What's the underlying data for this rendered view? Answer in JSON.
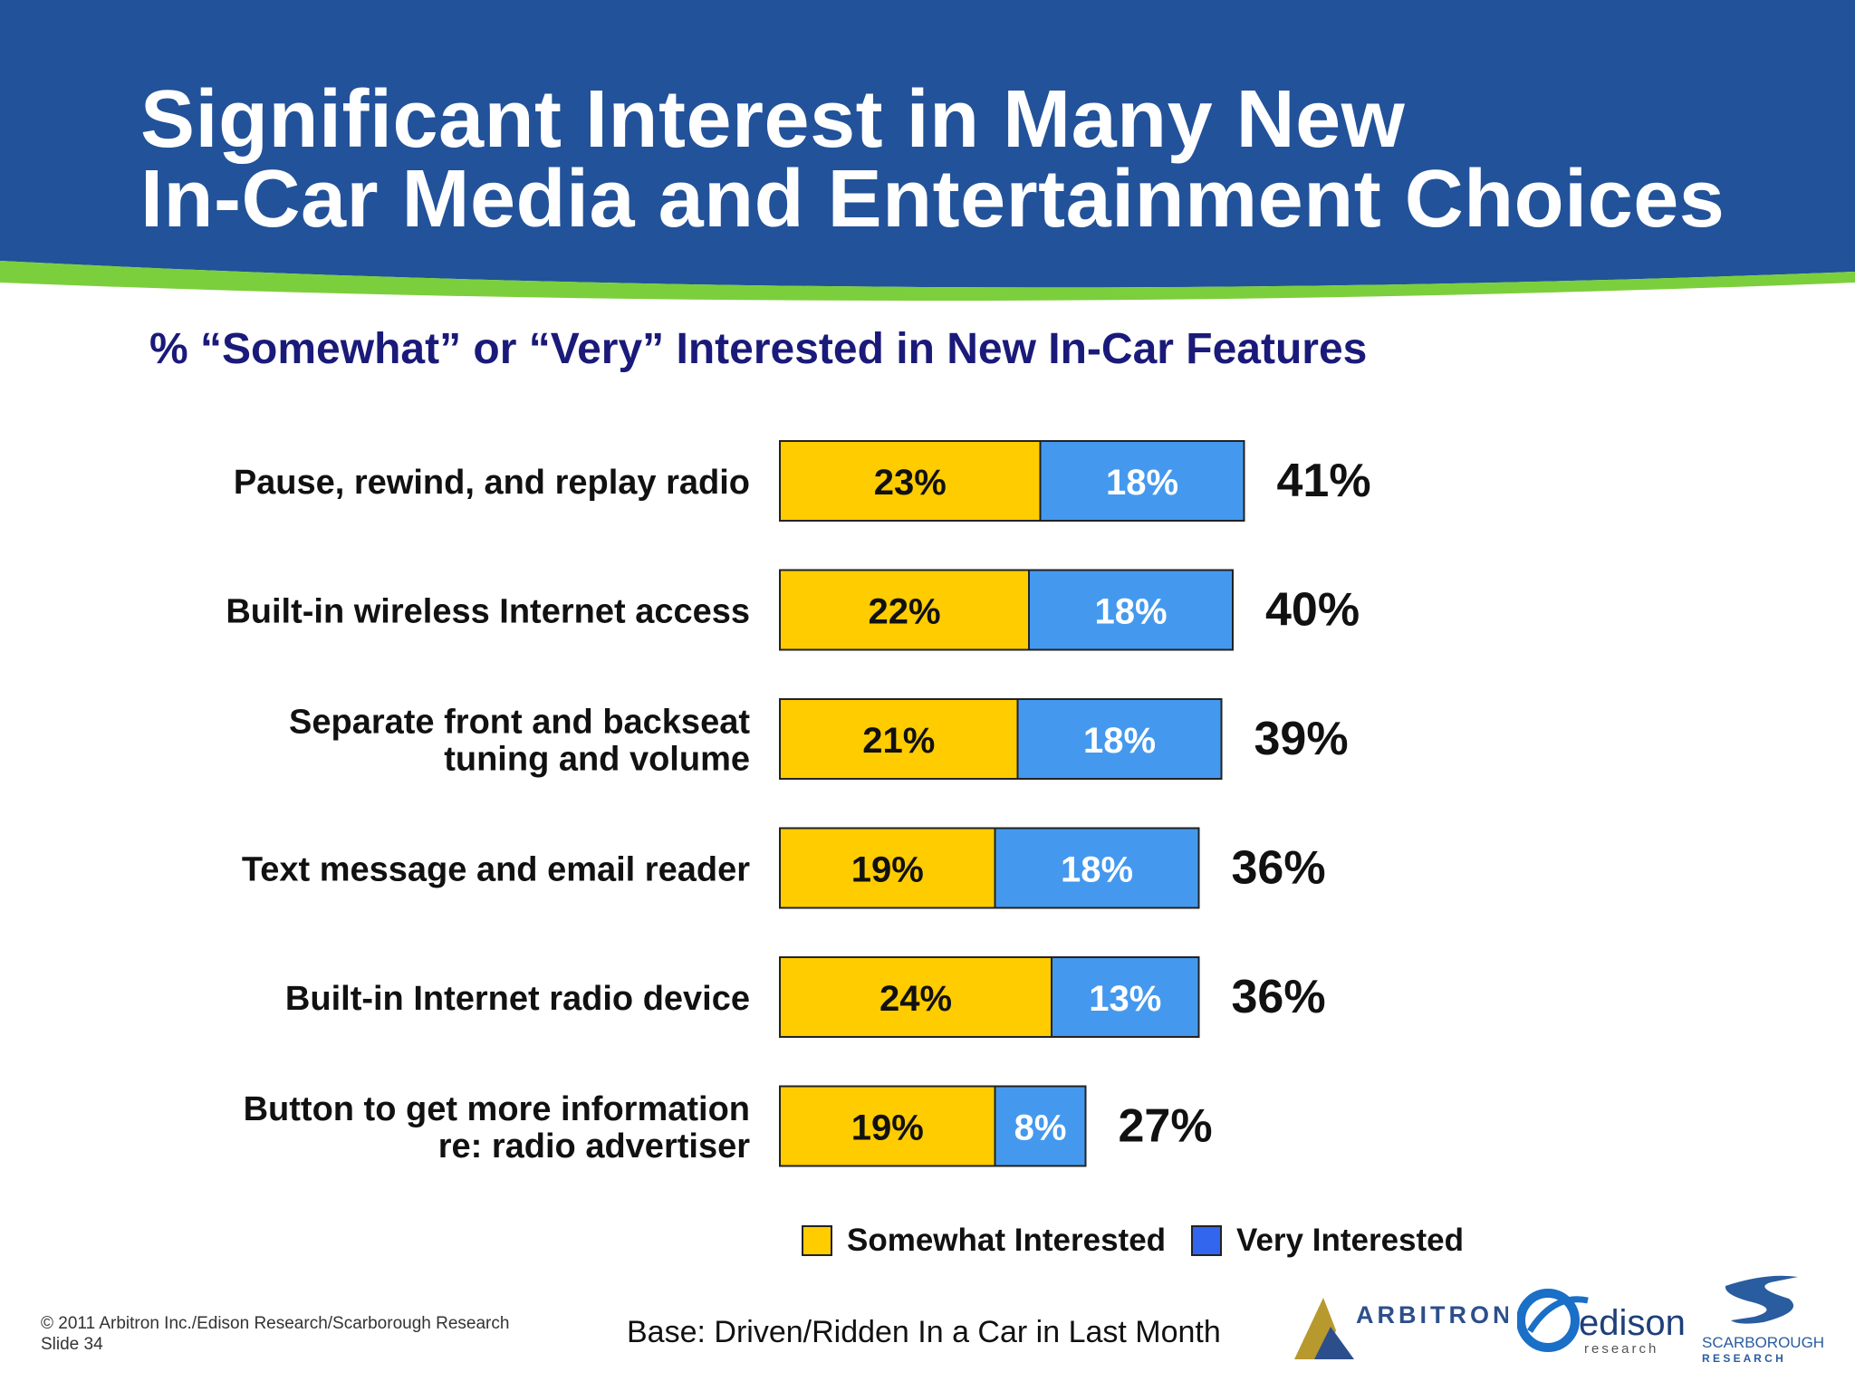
{
  "slide": {
    "title_line1": "Significant Interest in Many New",
    "title_line2": "In-Car Media and Entertainment Choices",
    "subtitle": "% “Somewhat” or “Very” Interested in New In-Car Features",
    "base_note": "Base: Driven/Ridden In a Car in Last Month",
    "copyright_line1": "© 2011 Arbitron Inc./Edison Research/Scarborough Research",
    "copyright_line2": "Slide 34",
    "logos": {
      "arbitron": "ARBITRON",
      "edison": "edison",
      "edison_sub": "research",
      "scarborough": "SCARBOROUGH",
      "scarborough_sub": "R E S E A R C H"
    }
  },
  "colors": {
    "header_blue": "#22529a",
    "accent_green": "#7ccf3c",
    "somewhat": "#ffcc00",
    "very": "#4499ee",
    "legend_very": "#3366ee"
  },
  "chart_data": {
    "type": "bar",
    "orientation": "horizontal",
    "stacked": true,
    "categories": [
      [
        "Pause, rewind, and replay radio"
      ],
      [
        "Built-in wireless Internet access"
      ],
      [
        "Separate front and backseat",
        "tuning and volume"
      ],
      [
        "Text message and email reader"
      ],
      [
        "Built-in Internet radio device"
      ],
      [
        "Button to get more information",
        "re: radio advertiser"
      ]
    ],
    "series": [
      {
        "name": "Somewhat Interested",
        "values": [
          23,
          22,
          21,
          19,
          24,
          19
        ],
        "labels": [
          "23%",
          "22%",
          "21%",
          "19%",
          "24%",
          "19%"
        ]
      },
      {
        "name": "Very Interested",
        "values": [
          18,
          18,
          18,
          18,
          13,
          8
        ],
        "labels": [
          "18%",
          "18%",
          "18%",
          "18%",
          "13%",
          "8%"
        ]
      }
    ],
    "totals": [
      41,
      40,
      39,
      36,
      36,
      27
    ],
    "total_labels": [
      "41%",
      "40%",
      "39%",
      "36%",
      "36%",
      "27%"
    ],
    "unit": "%",
    "legend_position": "bottom",
    "grid": false
  }
}
